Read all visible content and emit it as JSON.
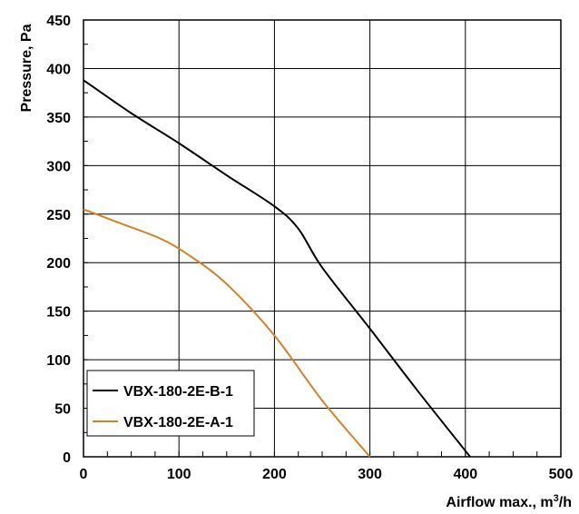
{
  "chart_data": {
    "type": "line",
    "xlabel": "Airflow max., m³/h",
    "ylabel": "Pressure, Pa",
    "xlim": [
      0,
      500
    ],
    "ylim": [
      0,
      450
    ],
    "x_ticks": [
      "0",
      "100",
      "200",
      "300",
      "400",
      "500"
    ],
    "y_ticks": [
      "0",
      "50",
      "100",
      "150",
      "200",
      "250",
      "300",
      "350",
      "400",
      "450"
    ],
    "grid": true,
    "legend_position": "bottom-left",
    "series": [
      {
        "name": "VBX-180-2E-B-1",
        "color": "#000000",
        "points": [
          [
            0,
            388
          ],
          [
            50,
            354
          ],
          [
            100,
            323
          ],
          [
            150,
            290
          ],
          [
            200,
            258
          ],
          [
            225,
            235
          ],
          [
            250,
            195
          ],
          [
            300,
            132
          ],
          [
            350,
            68
          ],
          [
            405,
            0
          ]
        ]
      },
      {
        "name": "VBX-180-2E-A-1",
        "color": "#d4822a",
        "points": [
          [
            0,
            255
          ],
          [
            40,
            240
          ],
          [
            80,
            225
          ],
          [
            110,
            208
          ],
          [
            150,
            178
          ],
          [
            200,
            125
          ],
          [
            250,
            58
          ],
          [
            300,
            0
          ]
        ]
      }
    ]
  }
}
